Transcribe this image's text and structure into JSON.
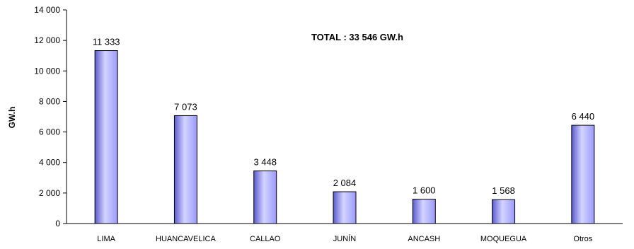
{
  "chart_data": {
    "type": "bar",
    "categories": [
      "LIMA",
      "HUANCAVELICA",
      "CALLAO",
      "JUNÍN",
      "ANCASH",
      "MOQUEGUA",
      "Otros"
    ],
    "values": [
      11333,
      7073,
      3448,
      2084,
      1600,
      1568,
      6440
    ],
    "value_labels": [
      "11 333",
      "7 073",
      "3 448",
      "2 084",
      "1 600",
      "1 568",
      "6 440"
    ],
    "ylabel": "GW.h",
    "xlabel": "",
    "ylim": [
      0,
      14000
    ],
    "yticks": [
      0,
      2000,
      4000,
      6000,
      8000,
      10000,
      12000,
      14000
    ],
    "ytick_labels": [
      "0",
      "2 000",
      "4 000",
      "6 000",
      "8 000",
      "10 000",
      "12 000",
      "14 000"
    ],
    "annotation": "TOTAL : 33 546 GW.h",
    "grid": false,
    "legend": "none",
    "bar_color": "#9999ff",
    "bar_color_light": "#d4d4ff",
    "bar_color_dark": "#5a5ad0"
  }
}
